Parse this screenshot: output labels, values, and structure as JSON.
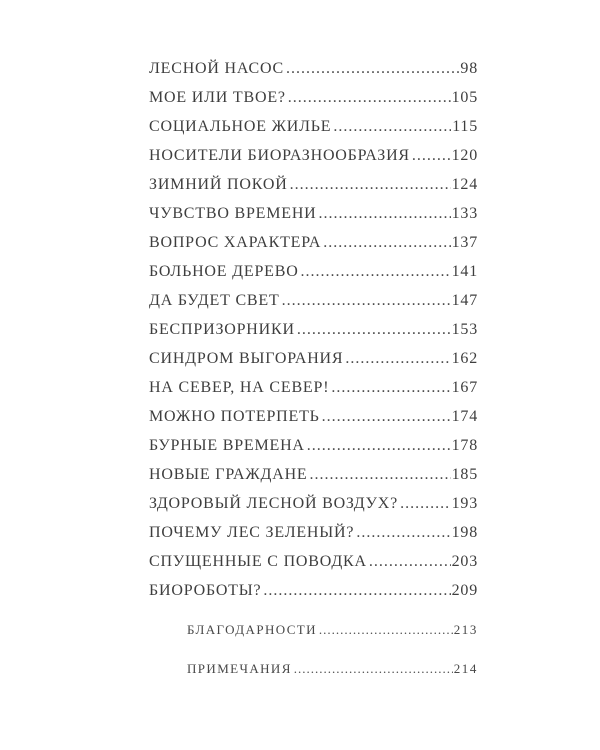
{
  "page": {
    "background_color": "#ffffff",
    "text_color": "#3e3e3e"
  },
  "toc": {
    "entries": [
      {
        "title": "ЛЕСНОЙ НАСОС",
        "page": "98"
      },
      {
        "title": "МОЕ ИЛИ ТВОЕ?",
        "page": "105"
      },
      {
        "title": "СОЦИАЛЬНОЕ ЖИЛЬЕ",
        "page": "115"
      },
      {
        "title": "НОСИТЕЛИ БИОРАЗНООБРАЗИЯ",
        "page": "120"
      },
      {
        "title": "ЗИМНИЙ ПОКОЙ",
        "page": "124"
      },
      {
        "title": "ЧУВСТВО ВРЕМЕНИ",
        "page": "133"
      },
      {
        "title": "ВОПРОС ХАРАКТЕРА",
        "page": "137"
      },
      {
        "title": "БОЛЬНОЕ ДЕРЕВО",
        "page": "141"
      },
      {
        "title": "ДА БУДЕТ СВЕТ",
        "page": "147"
      },
      {
        "title": "БЕСПРИЗОРНИКИ",
        "page": "153"
      },
      {
        "title": "СИНДРОМ ВЫГОРАНИЯ",
        "page": "162"
      },
      {
        "title": "НА СЕВЕР, НА СЕВЕР!",
        "page": "167"
      },
      {
        "title": "МОЖНО ПОТЕРПЕТЬ",
        "page": "174"
      },
      {
        "title": "БУРНЫЕ ВРЕМЕНА",
        "page": "178"
      },
      {
        "title": "НОВЫЕ ГРАЖДАНЕ",
        "page": "185"
      },
      {
        "title": "ЗДОРОВЫЙ ЛЕСНОЙ ВОЗДУХ?",
        "page": "193"
      },
      {
        "title": "ПОЧЕМУ ЛЕС ЗЕЛЕНЫЙ?",
        "page": "198"
      },
      {
        "title": "СПУЩЕННЫЕ С ПОВОДКА",
        "page": "203"
      },
      {
        "title": "БИОРОБОТЫ?",
        "page": "209"
      },
      {
        "title": "БЛАГОДАРНОСТИ",
        "page": "213"
      },
      {
        "title": "ПРИМЕЧАНИЯ",
        "page": "214"
      }
    ]
  }
}
